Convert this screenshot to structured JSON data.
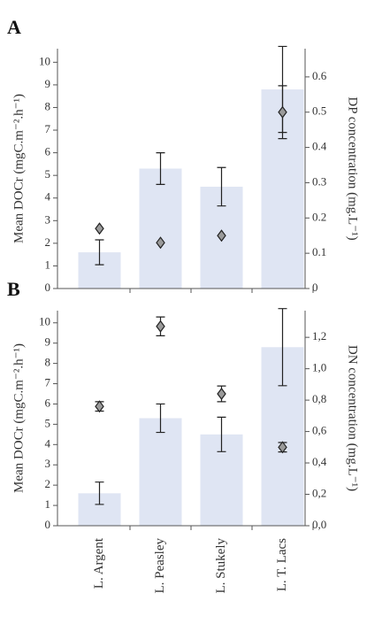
{
  "chart_data": [
    {
      "type": "bar",
      "panel_label": "A",
      "ylabel": "Mean DOCr (mgC.m⁻².h⁻¹)",
      "y2label": "DP concentration (mg.L⁻¹)",
      "categories": [
        null,
        null,
        null,
        null
      ],
      "series": [
        {
          "type": "bar",
          "color": "#dfe5f3",
          "values": [
            1.6,
            5.3,
            4.5,
            8.8
          ],
          "errors": [
            0.55,
            0.7,
            0.85,
            1.9
          ]
        },
        {
          "type": "diamond",
          "axis": "y2",
          "color": "#9a9a9a",
          "values": [
            0.17,
            0.13,
            0.15,
            0.5
          ],
          "errors": [
            null,
            null,
            null,
            0.075
          ]
        }
      ],
      "ylim": [
        0,
        10.6
      ],
      "yticks": [
        0,
        1,
        2,
        3,
        4,
        5,
        6,
        7,
        8,
        9,
        10
      ],
      "y2lim": [
        0,
        0.68
      ],
      "y2ticks": [
        0,
        0.1,
        0.2,
        0.3,
        0.4,
        0.5,
        0.6
      ]
    },
    {
      "type": "bar",
      "panel_label": "B",
      "ylabel": "Mean DOCr (mgC.m⁻².h⁻¹)",
      "y2label": "DN concentration (mg.L⁻¹)",
      "categories": [
        "L. Argent",
        "L. Peasley",
        "L. Stukely",
        "L. T. Lacs"
      ],
      "series": [
        {
          "type": "bar",
          "color": "#dfe5f3",
          "values": [
            1.6,
            5.3,
            4.5,
            8.8
          ],
          "errors": [
            0.55,
            0.7,
            0.85,
            1.9
          ]
        },
        {
          "type": "diamond",
          "axis": "y2",
          "color": "#9a9a9a",
          "values": [
            0.76,
            1.27,
            0.84,
            0.5
          ],
          "errors": [
            0.03,
            0.06,
            0.05,
            0.03
          ]
        }
      ],
      "ylim": [
        0,
        10.6
      ],
      "yticks": [
        0,
        1,
        2,
        3,
        4,
        5,
        6,
        7,
        8,
        9,
        10
      ],
      "y2lim": [
        0,
        1.37
      ],
      "y2ticks": [
        {
          "value": 0,
          "label": "0,0"
        },
        {
          "value": 0.2,
          "label": "0,2"
        },
        {
          "value": 0.4,
          "label": "0,4"
        },
        {
          "value": 0.6,
          "label": "0,6"
        },
        {
          "value": 0.8,
          "label": "0,8"
        },
        {
          "value": 1.0,
          "label": "1,0"
        },
        {
          "value": 1.2,
          "label": "1,2"
        }
      ]
    }
  ]
}
